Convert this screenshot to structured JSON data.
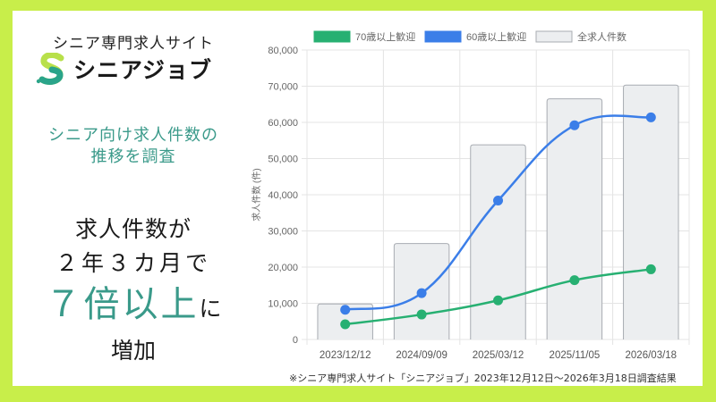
{
  "brand": {
    "tagline": "シニア専門求人サイト",
    "name": "シニアジョブ",
    "colors": {
      "border": "#c8ee4a",
      "accent": "#3a9a8a",
      "logo_green": "#b8e04a",
      "logo_teal": "#2aa48a"
    }
  },
  "left_panel": {
    "subtitle_line1": "シニア向け求人件数の",
    "subtitle_line2": "推移を調査",
    "headline_line1": "求人件数が",
    "headline_line2": "２年３カ月で",
    "headline_emphasis": "７倍以上",
    "headline_suffix": "に",
    "headline_line4": "増加"
  },
  "footnote": "※シニア専門求人サイト「シニアジョブ」2023年12月12日～2026年3月18日調査結果",
  "chart_data": {
    "type": "bar",
    "title": "",
    "xlabel": "",
    "ylabel": "求人件数 (件)",
    "ylim": [
      0,
      80000
    ],
    "yticks": [
      "0",
      "10,000",
      "20,000",
      "30,000",
      "40,000",
      "50,000",
      "60,000",
      "70,000",
      "80,000"
    ],
    "grid": true,
    "legend_position": "top",
    "categories": [
      "2023/12/12",
      "2024/09/09",
      "2025/03/12",
      "2025/11/05",
      "2026/03/18"
    ],
    "series": [
      {
        "name": "70歳以上歓迎",
        "type": "line",
        "color": "#27b072",
        "values": [
          4200,
          6900,
          10800,
          16400,
          19400
        ]
      },
      {
        "name": "60歳以上歓迎",
        "type": "line",
        "color": "#3b7ee8",
        "values": [
          8200,
          12800,
          38400,
          59200,
          61400
        ]
      },
      {
        "name": "全求人件数",
        "type": "bar",
        "color": "#eceef0",
        "border": "#a8acb2",
        "values": [
          9800,
          26500,
          53800,
          66500,
          70300
        ]
      }
    ]
  }
}
